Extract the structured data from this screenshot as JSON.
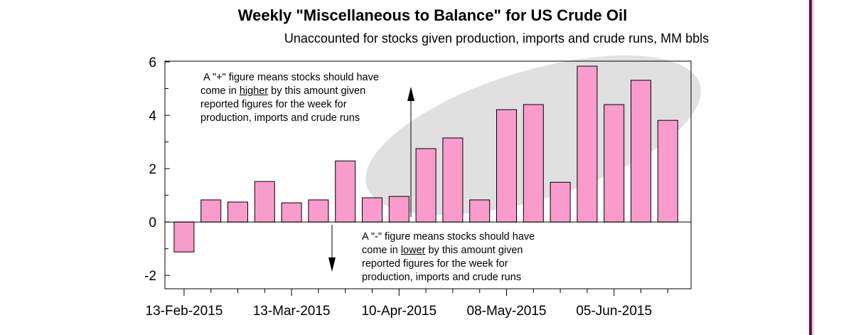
{
  "chart_data": {
    "type": "bar",
    "title": "Weekly \"Miscellaneous to Balance\" for US Crude Oil",
    "subtitle": "Unaccounted for stocks given production, imports and crude runs, MM bbls",
    "xlabel": "",
    "ylabel": "MM bbls",
    "ylim": [
      -2.5,
      6
    ],
    "yticks": [
      -2,
      0,
      2,
      4,
      6
    ],
    "xtick_labels": [
      "13-Feb-2015",
      "13-Mar-2015",
      "10-Apr-2015",
      "08-May-2015",
      "05-Jun-2015"
    ],
    "xtick_label_every": 4,
    "values": [
      -1.12,
      0.83,
      0.75,
      1.52,
      0.72,
      0.83,
      2.29,
      0.91,
      0.96,
      2.75,
      3.15,
      0.83,
      4.21,
      4.4,
      1.49,
      5.84,
      4.4,
      5.31,
      3.81
    ],
    "bar_color": "#f99ccb",
    "highlight_color": "#e0e0e0",
    "grid": false,
    "annotations": {
      "positive": {
        "line1": "A \"+\" figure means stocks should have",
        "pre": "come in ",
        "emph": "higher",
        "post": " by this amount given",
        "line3": "reported figures for the week for",
        "line4": "production, imports and crude runs"
      },
      "negative": {
        "line1": "A \"-\" figure means stocks should have",
        "pre": "come in ",
        "emph": "lower",
        "post": " by this amount given",
        "line3": "reported figures for the week for",
        "line4": "production, imports and crude runs"
      }
    }
  }
}
